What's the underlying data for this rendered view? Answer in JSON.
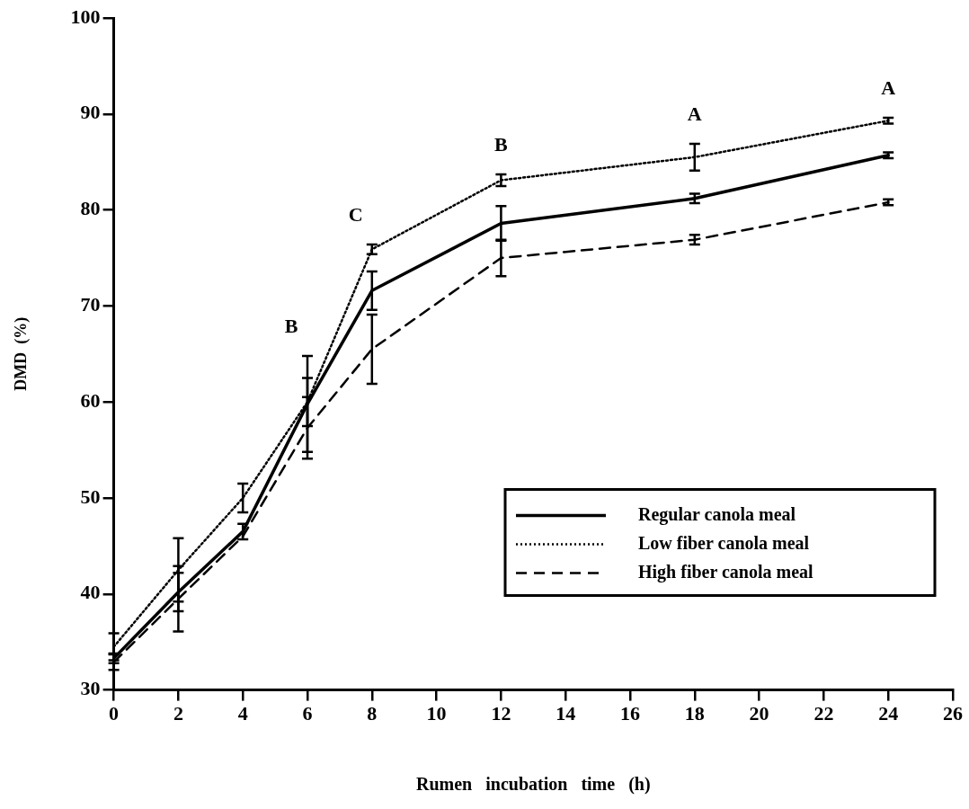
{
  "chart_data": {
    "type": "line",
    "xlabel": "Rumen   incubation   time   (h)",
    "ylabel": "DMD  (%)",
    "x": [
      0,
      2,
      4,
      6,
      8,
      12,
      18,
      24
    ],
    "series": [
      {
        "name": "Regular canola meal",
        "color": "#000000",
        "line_style": "solid",
        "values": [
          33.3,
          40.2,
          46.5,
          59.8,
          71.6,
          78.6,
          81.2,
          85.7
        ],
        "errors": [
          0.5,
          2,
          0.8,
          5,
          2,
          1.8,
          0.5,
          0.3
        ]
      },
      {
        "name": "Low fiber canola meal",
        "color": "#000000",
        "line_style": "dotted",
        "values": [
          34.5,
          42.5,
          50,
          60,
          75.9,
          83.1,
          85.5,
          89.3
        ],
        "errors": [
          1.4,
          3.3,
          1.5,
          2.5,
          0.5,
          0.6,
          1.4,
          0.3
        ]
      },
      {
        "name": "High fiber canola meal",
        "color": "#000000",
        "line_style": "dashed",
        "values": [
          32.9,
          39.5,
          46,
          57.3,
          65.5,
          75,
          76.9,
          80.8
        ],
        "errors": [
          0.8,
          3.4,
          null,
          3.2,
          3.6,
          1.9,
          0.5,
          0.3
        ]
      }
    ],
    "xlim": [
      0,
      26
    ],
    "xticks": [
      0,
      2,
      4,
      6,
      8,
      10,
      12,
      14,
      16,
      18,
      20,
      22,
      24,
      26
    ],
    "ylim": [
      30,
      100
    ],
    "yticks": [
      30,
      40,
      50,
      60,
      70,
      80,
      90,
      100
    ],
    "annotations": [
      "B",
      "C",
      "B",
      "A",
      "A"
    ],
    "grid": false,
    "legend": "bottom right",
    "marker": "none"
  }
}
